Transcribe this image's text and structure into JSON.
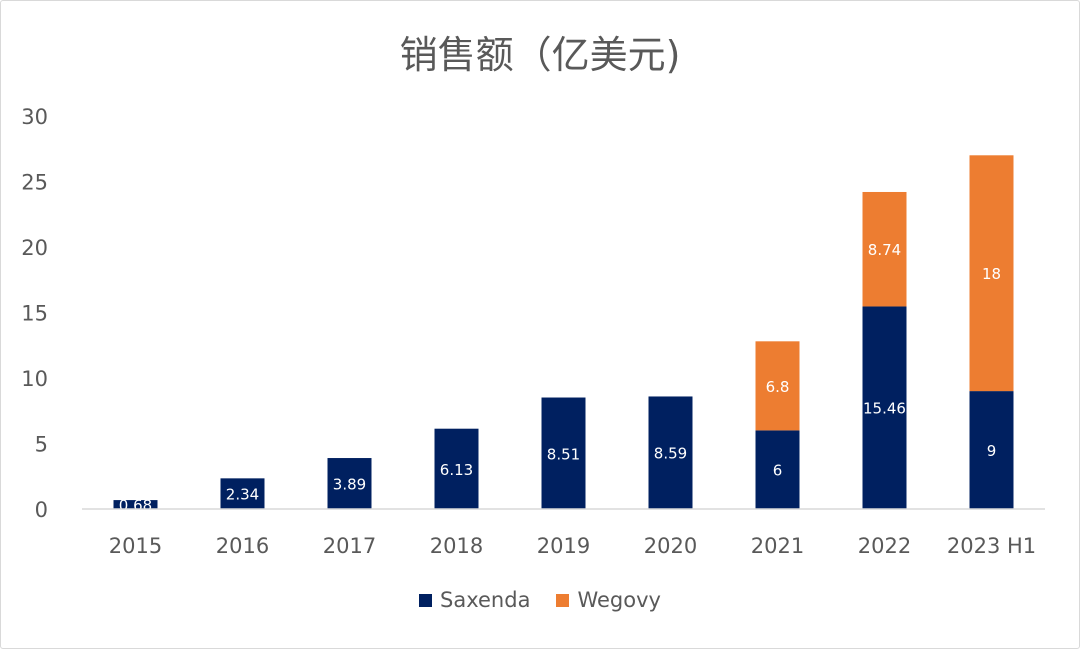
{
  "chart_data": {
    "type": "bar",
    "stacked": true,
    "title": "销售额（亿美元)",
    "xlabel": "",
    "ylabel": "",
    "categories": [
      "2015",
      "2016",
      "2017",
      "2018",
      "2019",
      "2020",
      "2021",
      "2022",
      "2023 H1"
    ],
    "series": [
      {
        "name": "Saxenda",
        "color": "#002060",
        "label_color": "#ffffff",
        "values": [
          0.68,
          2.34,
          3.89,
          6.13,
          8.51,
          8.59,
          6,
          15.46,
          9
        ],
        "labels": [
          "0.68",
          "2.34",
          "3.89",
          "6.13",
          "8.51",
          "8.59",
          "6",
          "15.46",
          "9"
        ]
      },
      {
        "name": "Wegovy",
        "color": "#ED7D31",
        "label_color": "#ffffff",
        "values": [
          null,
          null,
          null,
          null,
          null,
          null,
          6.8,
          8.74,
          18
        ],
        "labels": [
          "",
          "",
          "",
          "",
          "",
          "",
          "6.8",
          "8.74",
          "18"
        ]
      }
    ],
    "ylim": [
      0,
      30
    ],
    "yticks": [
      0,
      5,
      10,
      15,
      20,
      25,
      30
    ],
    "grid": false,
    "legend_position": "bottom"
  }
}
